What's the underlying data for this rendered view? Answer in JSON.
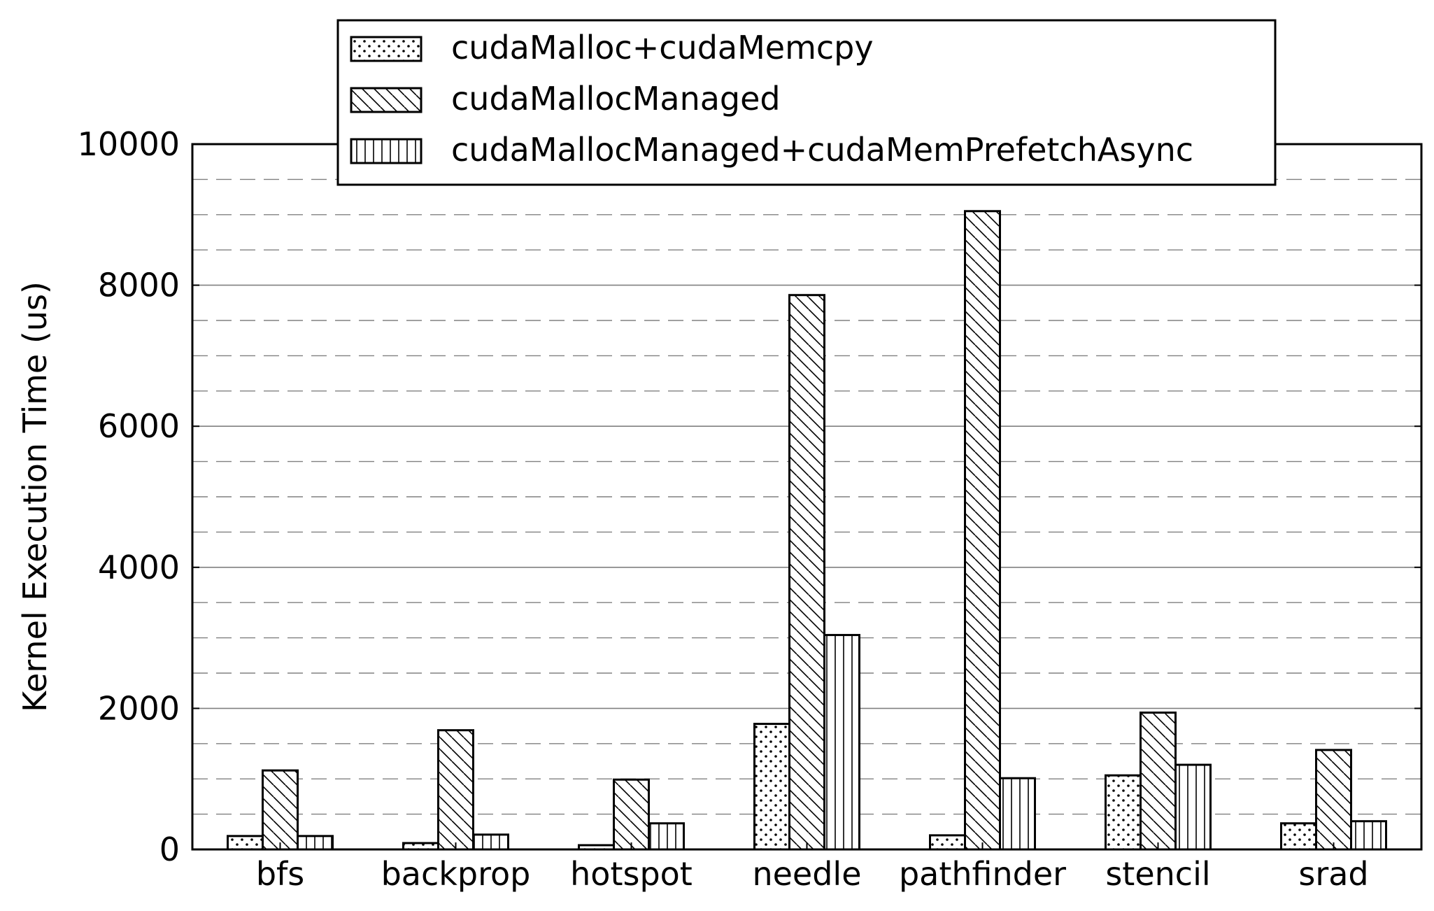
{
  "chart_data": {
    "type": "bar",
    "title": "",
    "xlabel": "",
    "ylabel": "Kernel Execution Time (us)",
    "ylim": [
      0,
      10000
    ],
    "yticks": [
      0,
      2000,
      4000,
      6000,
      8000,
      10000
    ],
    "minor_grid_step": 500,
    "grid": true,
    "legend_position": "top-center",
    "categories": [
      "bfs",
      "backprop",
      "hotspot",
      "needle",
      "pathfinder",
      "stencil",
      "srad"
    ],
    "series": [
      {
        "name": "cudaMalloc+cudaMemcpy",
        "pattern": "dots",
        "values": [
          190,
          90,
          60,
          1780,
          200,
          1050,
          370
        ]
      },
      {
        "name": "cudaMallocManaged",
        "pattern": "diagonal",
        "values": [
          1120,
          1690,
          990,
          7860,
          9050,
          1940,
          1410
        ]
      },
      {
        "name": "cudaMallocManaged+cudaMemPrefetchAsync",
        "pattern": "vertical",
        "values": [
          190,
          210,
          370,
          3040,
          1010,
          1200,
          400
        ]
      }
    ],
    "colors": {
      "bar_fill": "#ffffff",
      "bar_stroke": "#000000",
      "major_grid": "#808080",
      "minor_grid": "#808080"
    }
  }
}
